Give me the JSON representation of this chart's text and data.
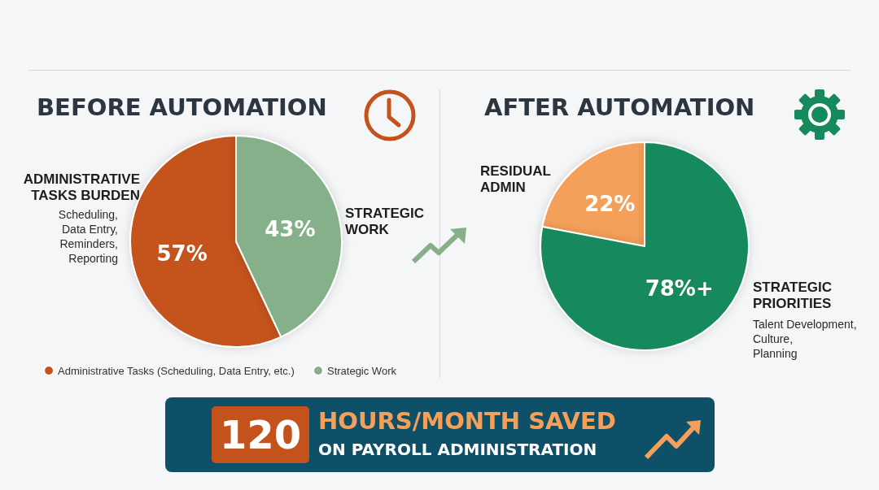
{
  "chart_data": [
    {
      "type": "pie",
      "title": "BEFORE AUTOMATION",
      "categories": [
        "Administrative Tasks (Scheduling, Data Entry, etc.)",
        "Strategic Work"
      ],
      "values": [
        57,
        43
      ],
      "colors": [
        "#c4521c",
        "#86b08a"
      ],
      "value_labels": [
        "57%",
        "43%"
      ],
      "legend": "bottom",
      "annotations": [
        "ADMINISTRATIVE\nTASKS BURDEN",
        "Scheduling,\nData Entry,\nReminders,\nReporting",
        "STRATEGIC\nWORK"
      ]
    },
    {
      "type": "pie",
      "title": "AFTER AUTOMATION",
      "categories": [
        "RESIDUAL\nADMIN",
        "STRATEGIC\nPRIORITIES"
      ],
      "values": [
        22,
        78
      ],
      "colors": [
        "#f5a05a",
        "#168a5c"
      ],
      "value_labels": [
        "22%",
        "78%+"
      ],
      "annotations": [
        "Talent Development,\nCulture,\nPlanning"
      ]
    },
    {
      "type": "other",
      "annotations": [
        "120",
        "HOURS/MONTH SAVED",
        "ON PAYROLL ADMINISTRATION"
      ]
    }
  ]
}
